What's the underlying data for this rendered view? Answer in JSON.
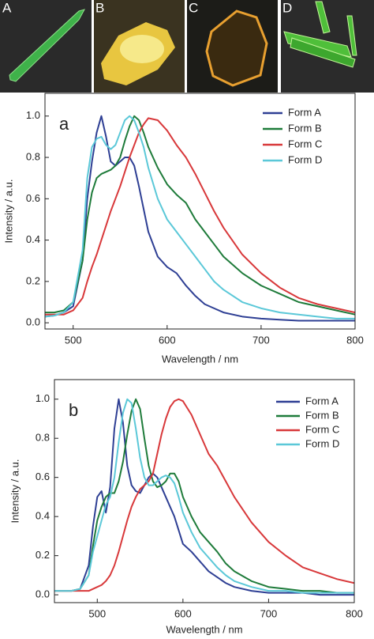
{
  "photo_panels": [
    "A",
    "B",
    "C",
    "D"
  ],
  "chart_data": [
    {
      "type": "line",
      "panel_label": "a",
      "x_label": "Wavelength / nm",
      "y_label": "Intensity / a.u.",
      "xlim": [
        470,
        800
      ],
      "ylim": [
        -0.03,
        1.11
      ],
      "xticks": [
        500,
        600,
        700,
        800
      ],
      "yticks": [
        {
          "value": 0,
          "label": "0.0"
        },
        0.2,
        0.4,
        0.6,
        0.8,
        {
          "value": 1,
          "label": "1.0"
        }
      ],
      "legend": "upper right",
      "x": [
        470,
        480,
        490,
        500,
        510,
        515,
        520,
        525,
        530,
        535,
        540,
        545,
        550,
        555,
        560,
        565,
        570,
        575,
        580,
        590,
        600,
        610,
        620,
        630,
        640,
        650,
        660,
        680,
        700,
        720,
        740,
        760,
        780,
        800
      ],
      "series": [
        {
          "name": "Form A",
          "color": "#2e3f94",
          "values": [
            0.03,
            0.035,
            0.05,
            0.08,
            0.3,
            0.6,
            0.78,
            0.92,
            1.0,
            0.9,
            0.78,
            0.76,
            0.78,
            0.8,
            0.8,
            0.76,
            0.66,
            0.55,
            0.44,
            0.32,
            0.27,
            0.24,
            0.18,
            0.13,
            0.09,
            0.07,
            0.05,
            0.03,
            0.02,
            0.015,
            0.01,
            0.01,
            0.01,
            0.01
          ]
        },
        {
          "name": "Form B",
          "color": "#1e7b3a",
          "values": [
            0.05,
            0.05,
            0.06,
            0.1,
            0.3,
            0.5,
            0.63,
            0.7,
            0.72,
            0.73,
            0.74,
            0.76,
            0.8,
            0.88,
            0.95,
            1.0,
            0.98,
            0.92,
            0.85,
            0.75,
            0.67,
            0.62,
            0.58,
            0.5,
            0.44,
            0.38,
            0.32,
            0.24,
            0.18,
            0.14,
            0.1,
            0.08,
            0.06,
            0.04
          ]
        },
        {
          "name": "Form C",
          "color": "#d8383a",
          "values": [
            0.04,
            0.04,
            0.04,
            0.06,
            0.12,
            0.2,
            0.27,
            0.33,
            0.4,
            0.47,
            0.54,
            0.6,
            0.66,
            0.73,
            0.8,
            0.86,
            0.92,
            0.96,
            0.99,
            0.98,
            0.93,
            0.86,
            0.8,
            0.72,
            0.63,
            0.54,
            0.46,
            0.33,
            0.24,
            0.17,
            0.12,
            0.09,
            0.07,
            0.05
          ]
        },
        {
          "name": "Form D",
          "color": "#5bc8d8",
          "values": [
            0.03,
            0.035,
            0.05,
            0.1,
            0.35,
            0.7,
            0.85,
            0.89,
            0.9,
            0.86,
            0.84,
            0.86,
            0.92,
            0.98,
            1.0,
            0.98,
            0.92,
            0.85,
            0.75,
            0.6,
            0.5,
            0.44,
            0.38,
            0.32,
            0.26,
            0.2,
            0.16,
            0.1,
            0.07,
            0.05,
            0.04,
            0.03,
            0.02,
            0.02
          ]
        }
      ]
    },
    {
      "type": "line",
      "panel_label": "b",
      "x_label": "Wavelength / nm",
      "y_label": "Intensity / a.u.",
      "xlim": [
        450,
        800
      ],
      "ylim": [
        -0.04,
        1.1
      ],
      "xticks": [
        500,
        600,
        700,
        800
      ],
      "yticks": [
        {
          "value": 0,
          "label": "0.0"
        },
        0.2,
        0.4,
        0.6,
        0.8,
        {
          "value": 1,
          "label": "1.0"
        }
      ],
      "legend": "upper right",
      "x": [
        450,
        470,
        480,
        490,
        495,
        500,
        505,
        510,
        515,
        520,
        525,
        530,
        535,
        540,
        545,
        550,
        555,
        560,
        565,
        570,
        575,
        580,
        585,
        590,
        595,
        600,
        610,
        620,
        630,
        640,
        650,
        660,
        680,
        700,
        720,
        740,
        760,
        780,
        800
      ],
      "series": [
        {
          "name": "Form A",
          "color": "#2e3f94",
          "values": [
            0.02,
            0.02,
            0.03,
            0.15,
            0.35,
            0.5,
            0.53,
            0.42,
            0.55,
            0.85,
            1.0,
            0.88,
            0.66,
            0.56,
            0.53,
            0.52,
            0.56,
            0.6,
            0.62,
            0.6,
            0.55,
            0.5,
            0.45,
            0.4,
            0.33,
            0.26,
            0.22,
            0.17,
            0.12,
            0.09,
            0.06,
            0.04,
            0.02,
            0.01,
            0.01,
            0.01,
            0.0,
            0.0,
            0.0
          ]
        },
        {
          "name": "Form B",
          "color": "#1e7b3a",
          "values": [
            0.02,
            0.02,
            0.03,
            0.1,
            0.25,
            0.38,
            0.45,
            0.5,
            0.52,
            0.52,
            0.58,
            0.68,
            0.82,
            0.94,
            1.0,
            0.95,
            0.8,
            0.66,
            0.58,
            0.55,
            0.56,
            0.58,
            0.62,
            0.62,
            0.58,
            0.5,
            0.4,
            0.32,
            0.27,
            0.22,
            0.16,
            0.12,
            0.07,
            0.04,
            0.03,
            0.02,
            0.02,
            0.01,
            0.01
          ]
        },
        {
          "name": "Form C",
          "color": "#d8383a",
          "values": [
            0.02,
            0.02,
            0.02,
            0.02,
            0.03,
            0.04,
            0.05,
            0.07,
            0.1,
            0.15,
            0.22,
            0.3,
            0.38,
            0.45,
            0.5,
            0.54,
            0.56,
            0.58,
            0.62,
            0.72,
            0.82,
            0.9,
            0.96,
            0.99,
            1.0,
            0.99,
            0.92,
            0.82,
            0.72,
            0.66,
            0.58,
            0.5,
            0.37,
            0.27,
            0.2,
            0.14,
            0.11,
            0.08,
            0.06
          ]
        },
        {
          "name": "Form D",
          "color": "#5bc8d8",
          "values": [
            0.02,
            0.02,
            0.03,
            0.1,
            0.22,
            0.3,
            0.38,
            0.46,
            0.5,
            0.6,
            0.78,
            0.93,
            1.0,
            0.98,
            0.85,
            0.7,
            0.6,
            0.56,
            0.56,
            0.58,
            0.6,
            0.61,
            0.6,
            0.57,
            0.5,
            0.42,
            0.32,
            0.24,
            0.19,
            0.14,
            0.1,
            0.07,
            0.04,
            0.02,
            0.02,
            0.01,
            0.01,
            0.01,
            0.01
          ]
        }
      ]
    }
  ]
}
